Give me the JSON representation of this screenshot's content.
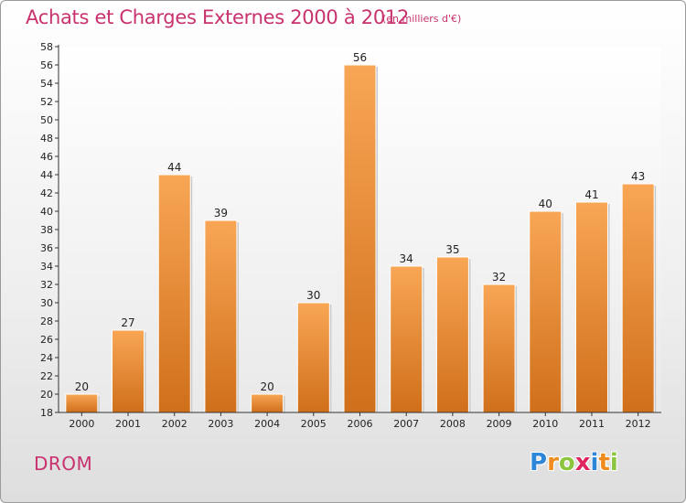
{
  "header": {
    "title": "Achats et Charges Externes 2000 à 2012",
    "unit": "(en milliers d'€)"
  },
  "footer": {
    "commune": "DROM",
    "logo_letters": [
      {
        "ch": "P",
        "color": "#2e86d8"
      },
      {
        "ch": "r",
        "color": "#f08c1e"
      },
      {
        "ch": "o",
        "color": "#8cc63f"
      },
      {
        "ch": "x",
        "color": "#e0245e"
      },
      {
        "ch": "i",
        "color": "#2e86d8"
      },
      {
        "ch": "t",
        "color": "#f08c1e"
      },
      {
        "ch": "i",
        "color": "#8cc63f"
      }
    ]
  },
  "chart_data": {
    "type": "bar",
    "title": "Achats et Charges Externes 2000 à 2012",
    "subtitle": "(en milliers d'€)",
    "categories": [
      "2000",
      "2001",
      "2002",
      "2003",
      "2004",
      "2005",
      "2006",
      "2007",
      "2008",
      "2009",
      "2010",
      "2011",
      "2012"
    ],
    "values": [
      20,
      27,
      44,
      39,
      20,
      30,
      56,
      34,
      35,
      32,
      40,
      41,
      43
    ],
    "ylim": [
      18,
      58
    ],
    "ytick_step": 2,
    "grid": false,
    "bar_color": "#f29a3c",
    "bar_color_light": "#f8a655",
    "bar_color_dark": "#d06f1a"
  }
}
